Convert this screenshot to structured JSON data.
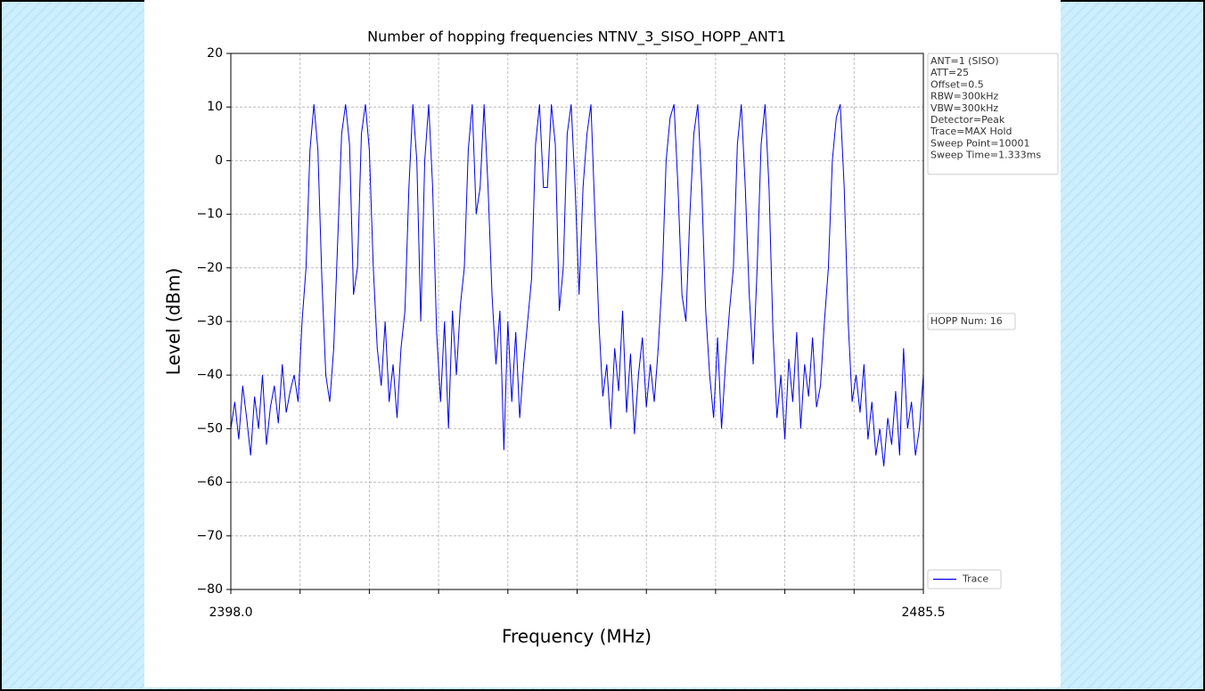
{
  "chart_data": {
    "type": "line",
    "title": "Number of hopping frequencies NTNV_3_SISO_HOPP_ANT1",
    "xlabel": "Frequency (MHz)",
    "ylabel": "Level (dBm)",
    "x": [
      2398,
      2398.5,
      2399,
      2399.5,
      2400,
      2400.5,
      2401,
      2401.5,
      2402,
      2402.5,
      2403,
      2403.5,
      2404,
      2404.5,
      2405,
      2405.5,
      2406,
      2406.5,
      2407,
      2407.5,
      2408,
      2408.5,
      2409,
      2409.5,
      2410,
      2410.5,
      2411,
      2411.5,
      2412,
      2412.5,
      2413,
      2413.5,
      2414,
      2414.5,
      2415,
      2415.5,
      2416,
      2416.5,
      2417,
      2417.5,
      2418,
      2418.5,
      2419,
      2419.5,
      2420,
      2420.5,
      2421,
      2421.5,
      2422,
      2422.5,
      2423,
      2423.5,
      2424,
      2424.5,
      2425,
      2425.5,
      2426,
      2426.5,
      2427,
      2427.5,
      2428,
      2428.5,
      2429,
      2429.5,
      2430,
      2430.5,
      2431,
      2431.5,
      2432,
      2432.5,
      2433,
      2433.5,
      2434,
      2434.5,
      2435,
      2435.5,
      2436,
      2436.5,
      2437,
      2437.5,
      2438,
      2438.5,
      2439,
      2439.5,
      2440,
      2440.5,
      2441,
      2441.5,
      2442,
      2442.5,
      2443,
      2443.5,
      2444,
      2444.5,
      2445,
      2445.5,
      2446,
      2446.5,
      2447,
      2447.5,
      2448,
      2448.5,
      2449,
      2449.5,
      2450,
      2450.5,
      2451,
      2451.5,
      2452,
      2452.5,
      2453,
      2453.5,
      2454,
      2454.5,
      2455,
      2455.5,
      2456,
      2456.5,
      2457,
      2457.5,
      2458,
      2458.5,
      2459,
      2459.5,
      2460,
      2460.5,
      2461,
      2461.5,
      2462,
      2462.5,
      2463,
      2463.5,
      2464,
      2464.5,
      2465,
      2465.5,
      2466,
      2466.5,
      2467,
      2467.5,
      2468,
      2468.5,
      2469,
      2469.5,
      2470,
      2470.5,
      2471,
      2471.5,
      2472,
      2472.5,
      2473,
      2473.5,
      2474,
      2474.5,
      2475,
      2475.5,
      2476,
      2476.5,
      2477,
      2477.5,
      2478,
      2478.5,
      2479,
      2479.5,
      2480,
      2480.5,
      2481,
      2481.5,
      2482,
      2482.5,
      2483,
      2483.5,
      2484,
      2484.5,
      2485,
      2485.5
    ],
    "series": [
      {
        "name": "Trace",
        "color": "#0000ee",
        "values": [
          -50,
          -45,
          -52,
          -42,
          -48,
          -55,
          -44,
          -50,
          -40,
          -53,
          -46,
          -42,
          -49,
          -38,
          -47,
          -43,
          -40,
          -45,
          -30,
          -20,
          2,
          10.5,
          2,
          -22,
          -40,
          -45,
          -35,
          -15,
          5,
          10.5,
          3,
          -25,
          -20,
          5,
          10.5,
          2,
          -20,
          -35,
          -42,
          -30,
          -45,
          -38,
          -48,
          -35,
          -28,
          -5,
          10.5,
          0,
          -30,
          0,
          10.5,
          -5,
          -32,
          -45,
          -30,
          -50,
          -28,
          -40,
          -27,
          -20,
          2,
          10.5,
          -10,
          -5,
          10.5,
          -5,
          -25,
          -38,
          -28,
          -54,
          -30,
          -45,
          -32,
          -48,
          -38,
          -30,
          -22,
          3,
          10.5,
          -5,
          -5,
          10.5,
          3,
          -28,
          -20,
          5,
          10.5,
          -5,
          -25,
          -5,
          5,
          10.5,
          -10,
          -30,
          -44,
          -38,
          -50,
          -35,
          -43,
          -28,
          -47,
          -36,
          -51,
          -40,
          -33,
          -46,
          -38,
          -45,
          -35,
          -22,
          0,
          8,
          10.5,
          -5,
          -25,
          -30,
          -10,
          5,
          10.5,
          -5,
          -28,
          -40,
          -48,
          -33,
          -50,
          -38,
          -28,
          -20,
          3,
          10.5,
          -5,
          -25,
          -38,
          -20,
          3,
          10.5,
          -5,
          -32,
          -48,
          -40,
          -52,
          -37,
          -45,
          -32,
          -50,
          -38,
          -44,
          -33,
          -46,
          -42,
          -30,
          -20,
          0,
          8,
          10.5,
          -5,
          -30,
          -45,
          -40,
          -47,
          -38,
          -52,
          -45,
          -55,
          -50,
          -57,
          -48,
          -53,
          -43,
          -55,
          -35,
          -50,
          -45,
          -55,
          -50,
          -40
        ]
      }
    ],
    "xlim": [
      2398,
      2485.5
    ],
    "xticks": [
      {
        "value": 2398,
        "label": "2398.0"
      },
      {
        "value": 2406.75,
        "label": null
      },
      {
        "value": 2415.5,
        "label": null
      },
      {
        "value": 2424.25,
        "label": null
      },
      {
        "value": 2433,
        "label": null
      },
      {
        "value": 2441.75,
        "label": null
      },
      {
        "value": 2450.5,
        "label": null
      },
      {
        "value": 2459.25,
        "label": null
      },
      {
        "value": 2468,
        "label": null
      },
      {
        "value": 2476.75,
        "label": null
      },
      {
        "value": 2485.5,
        "label": "2485.5"
      }
    ],
    "ylim": [
      -80,
      20
    ],
    "yticks": [
      {
        "value": -80,
        "label": "−80"
      },
      {
        "value": -70,
        "label": "−70"
      },
      {
        "value": -60,
        "label": "−60"
      },
      {
        "value": -50,
        "label": "−50"
      },
      {
        "value": -40,
        "label": "−40"
      },
      {
        "value": -30,
        "label": "−30"
      },
      {
        "value": -20,
        "label": "−20"
      },
      {
        "value": -10,
        "label": "−10"
      },
      0,
      10,
      20
    ],
    "grid": true,
    "legend": "lower right",
    "info_lines": [
      "ANT=1 (SISO)",
      "ATT=25",
      "Offset=0.5",
      "RBW=300kHz",
      "VBW=300kHz",
      "Detector=Peak",
      "Trace=MAX Hold",
      "Sweep Point=10001",
      "Sweep Time=1.333ms"
    ],
    "annotation": "HOPP Num: 16"
  }
}
